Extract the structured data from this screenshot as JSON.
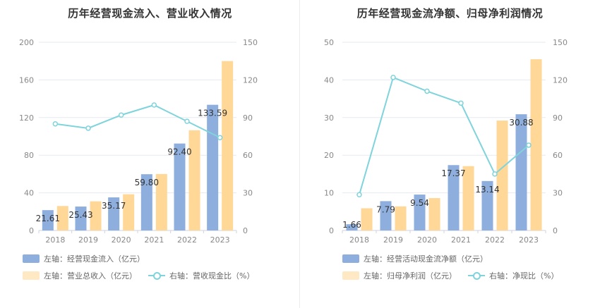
{
  "colors": {
    "blue": "#8eaedd",
    "orange": "#ffd797",
    "line": "#7fd4dc",
    "grid": "#e6e9f0"
  },
  "chart_data": [
    {
      "type": "bar",
      "title": "历年经营现金流入、营业收入情况",
      "categories": [
        "2018",
        "2019",
        "2020",
        "2021",
        "2022",
        "2023"
      ],
      "y_left": {
        "ylim": [
          0,
          200
        ],
        "ticks": [
          "0",
          "40",
          "80",
          "120",
          "160",
          "200"
        ]
      },
      "y_right": {
        "ylim": [
          0,
          150
        ],
        "ticks": [
          "0",
          "30",
          "60",
          "90",
          "120",
          "150"
        ]
      },
      "series": [
        {
          "name": "左轴：经营现金流入（亿元）",
          "kind": "bar",
          "axis": "left",
          "color": "#8eaedd",
          "values": [
            21.61,
            25.43,
            35.17,
            59.8,
            92.4,
            133.59
          ],
          "labels": [
            "21.61",
            "25.43",
            "35.17",
            "59.80",
            "92.40",
            "133.59"
          ]
        },
        {
          "name": "左轴：营业总收入（亿元）",
          "kind": "bar",
          "axis": "left",
          "color": "#ffd797",
          "values": [
            26,
            31,
            38.5,
            60,
            106.5,
            180
          ]
        },
        {
          "name": "右轴：营收现金比（%）",
          "kind": "line",
          "axis": "right",
          "color": "#7fd4dc",
          "values": [
            85,
            81.5,
            92,
            100,
            87,
            74
          ]
        }
      ],
      "grid": true,
      "legend": "bottom"
    },
    {
      "type": "bar",
      "title": "历年经营现金流净额、归母净利润情况",
      "categories": [
        "2018",
        "2019",
        "2020",
        "2021",
        "2022",
        "2023"
      ],
      "y_left": {
        "ylim": [
          0,
          50
        ],
        "ticks": [
          "0",
          "10",
          "20",
          "30",
          "40",
          "50"
        ]
      },
      "y_right": {
        "ylim": [
          0,
          150
        ],
        "ticks": [
          "0",
          "30",
          "60",
          "90",
          "120",
          "150"
        ]
      },
      "series": [
        {
          "name": "左轴：经营活动现金流净额（亿元）",
          "kind": "bar",
          "axis": "left",
          "color": "#8eaedd",
          "values": [
            1.66,
            7.79,
            9.54,
            17.37,
            13.14,
            30.88
          ],
          "labels": [
            "1.66",
            "7.79",
            "9.54",
            "17.37",
            "13.14",
            "30.88"
          ]
        },
        {
          "name": "左轴：归母净利润（亿元）",
          "kind": "bar",
          "axis": "left",
          "color": "#ffd797",
          "values": [
            5.9,
            6.4,
            8.6,
            17.1,
            29.2,
            45.5
          ]
        },
        {
          "name": "右轴：净现比（%）",
          "kind": "line",
          "axis": "right",
          "color": "#7fd4dc",
          "values": [
            28.5,
            122,
            111,
            101.5,
            45,
            68
          ]
        }
      ],
      "grid": true,
      "legend": "bottom"
    }
  ]
}
